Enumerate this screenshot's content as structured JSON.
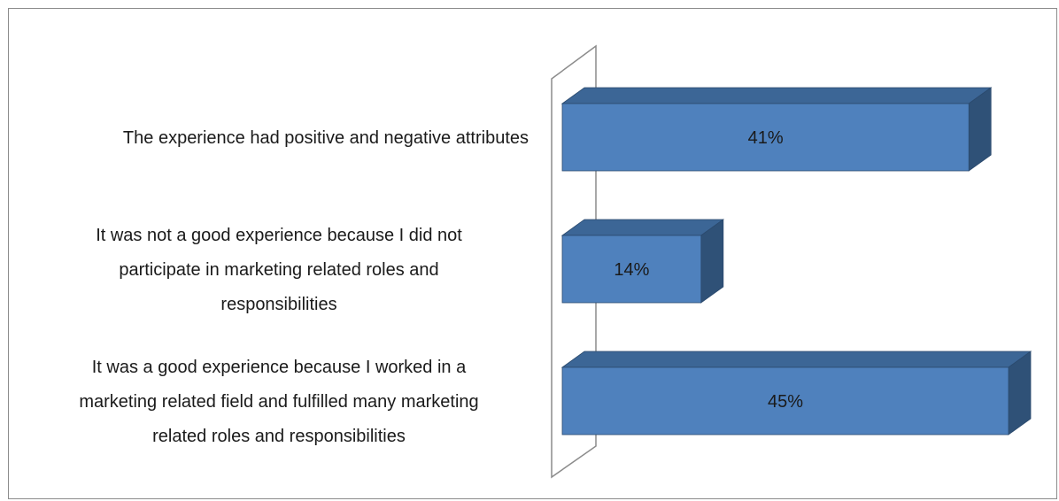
{
  "chart_data": {
    "type": "bar",
    "orientation": "horizontal",
    "style": "3d",
    "title": "",
    "xlabel": "",
    "ylabel": "",
    "categories": [
      [
        "The experience had positive and negative attributes"
      ],
      [
        "It was not a good experience because I did not",
        "participate in marketing related roles and",
        "responsibilities"
      ],
      [
        "It was a good experience because I worked in a",
        "marketing related field and fulfilled many marketing",
        "related roles and responsibilities"
      ]
    ],
    "values": [
      41,
      14,
      45
    ],
    "data_labels": [
      "41%",
      "14%",
      "45%"
    ],
    "xlim": [
      0,
      45
    ],
    "legend": "none",
    "grid": false,
    "colors": {
      "bar_front": "#4f81bd",
      "bar_top": "#3c6696",
      "bar_side": "#2f5177",
      "bar_edge": "#2b4a6e",
      "wall_line": "#8c8c8c"
    }
  }
}
